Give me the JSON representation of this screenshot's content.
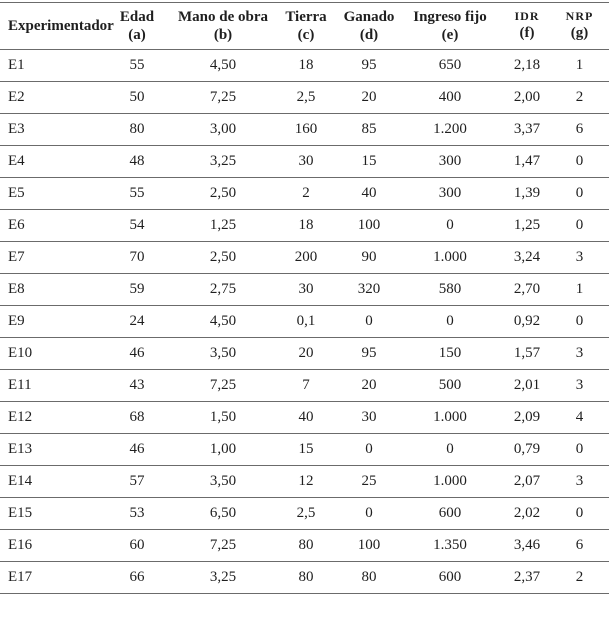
{
  "colors": {
    "background": "#ffffff",
    "text": "#1f1f1f",
    "rule": "#6b6b6b"
  },
  "table": {
    "columns": [
      {
        "label": "Experimentador",
        "unit": ""
      },
      {
        "label": "Edad",
        "unit": "(a)"
      },
      {
        "label": "Mano de obra",
        "unit": "(b)"
      },
      {
        "label": "Tierra",
        "unit": "(c)"
      },
      {
        "label": "Ganado",
        "unit": "(d)"
      },
      {
        "label": "Ingreso fijo",
        "unit": "(e)"
      },
      {
        "label": "IDR",
        "unit": "(f)"
      },
      {
        "label": "NRP",
        "unit": "(g)"
      }
    ],
    "rows": [
      {
        "id": "E1",
        "edad": "55",
        "mano_de_obra": "4,50",
        "tierra": "18",
        "ganado": "95",
        "ingreso_fijo": "650",
        "idr": "2,18",
        "nrp": "1"
      },
      {
        "id": "E2",
        "edad": "50",
        "mano_de_obra": "7,25",
        "tierra": "2,5",
        "ganado": "20",
        "ingreso_fijo": "400",
        "idr": "2,00",
        "nrp": "2"
      },
      {
        "id": "E3",
        "edad": "80",
        "mano_de_obra": "3,00",
        "tierra": "160",
        "ganado": "85",
        "ingreso_fijo": "1.200",
        "idr": "3,37",
        "nrp": "6"
      },
      {
        "id": "E4",
        "edad": "48",
        "mano_de_obra": "3,25",
        "tierra": "30",
        "ganado": "15",
        "ingreso_fijo": "300",
        "idr": "1,47",
        "nrp": "0"
      },
      {
        "id": "E5",
        "edad": "55",
        "mano_de_obra": "2,50",
        "tierra": "2",
        "ganado": "40",
        "ingreso_fijo": "300",
        "idr": "1,39",
        "nrp": "0"
      },
      {
        "id": "E6",
        "edad": "54",
        "mano_de_obra": "1,25",
        "tierra": "18",
        "ganado": "100",
        "ingreso_fijo": "0",
        "idr": "1,25",
        "nrp": "0"
      },
      {
        "id": "E7",
        "edad": "70",
        "mano_de_obra": "2,50",
        "tierra": "200",
        "ganado": "90",
        "ingreso_fijo": "1.000",
        "idr": "3,24",
        "nrp": "3"
      },
      {
        "id": "E8",
        "edad": "59",
        "mano_de_obra": "2,75",
        "tierra": "30",
        "ganado": "320",
        "ingreso_fijo": "580",
        "idr": "2,70",
        "nrp": "1"
      },
      {
        "id": "E9",
        "edad": "24",
        "mano_de_obra": "4,50",
        "tierra": "0,1",
        "ganado": "0",
        "ingreso_fijo": "0",
        "idr": "0,92",
        "nrp": "0"
      },
      {
        "id": "E10",
        "edad": "46",
        "mano_de_obra": "3,50",
        "tierra": "20",
        "ganado": "95",
        "ingreso_fijo": "150",
        "idr": "1,57",
        "nrp": "3"
      },
      {
        "id": "E11",
        "edad": "43",
        "mano_de_obra": "7,25",
        "tierra": "7",
        "ganado": "20",
        "ingreso_fijo": "500",
        "idr": "2,01",
        "nrp": "3"
      },
      {
        "id": "E12",
        "edad": "68",
        "mano_de_obra": "1,50",
        "tierra": "40",
        "ganado": "30",
        "ingreso_fijo": "1.000",
        "idr": "2,09",
        "nrp": "4"
      },
      {
        "id": "E13",
        "edad": "46",
        "mano_de_obra": "1,00",
        "tierra": "15",
        "ganado": "0",
        "ingreso_fijo": "0",
        "idr": "0,79",
        "nrp": "0"
      },
      {
        "id": "E14",
        "edad": "57",
        "mano_de_obra": "3,50",
        "tierra": "12",
        "ganado": "25",
        "ingreso_fijo": "1.000",
        "idr": "2,07",
        "nrp": "3"
      },
      {
        "id": "E15",
        "edad": "53",
        "mano_de_obra": "6,50",
        "tierra": "2,5",
        "ganado": "0",
        "ingreso_fijo": "600",
        "idr": "2,02",
        "nrp": "0"
      },
      {
        "id": "E16",
        "edad": "60",
        "mano_de_obra": "7,25",
        "tierra": "80",
        "ganado": "100",
        "ingreso_fijo": "1.350",
        "idr": "3,46",
        "nrp": "6"
      },
      {
        "id": "E17",
        "edad": "66",
        "mano_de_obra": "3,25",
        "tierra": "80",
        "ganado": "80",
        "ingreso_fijo": "600",
        "idr": "2,37",
        "nrp": "2"
      }
    ]
  }
}
